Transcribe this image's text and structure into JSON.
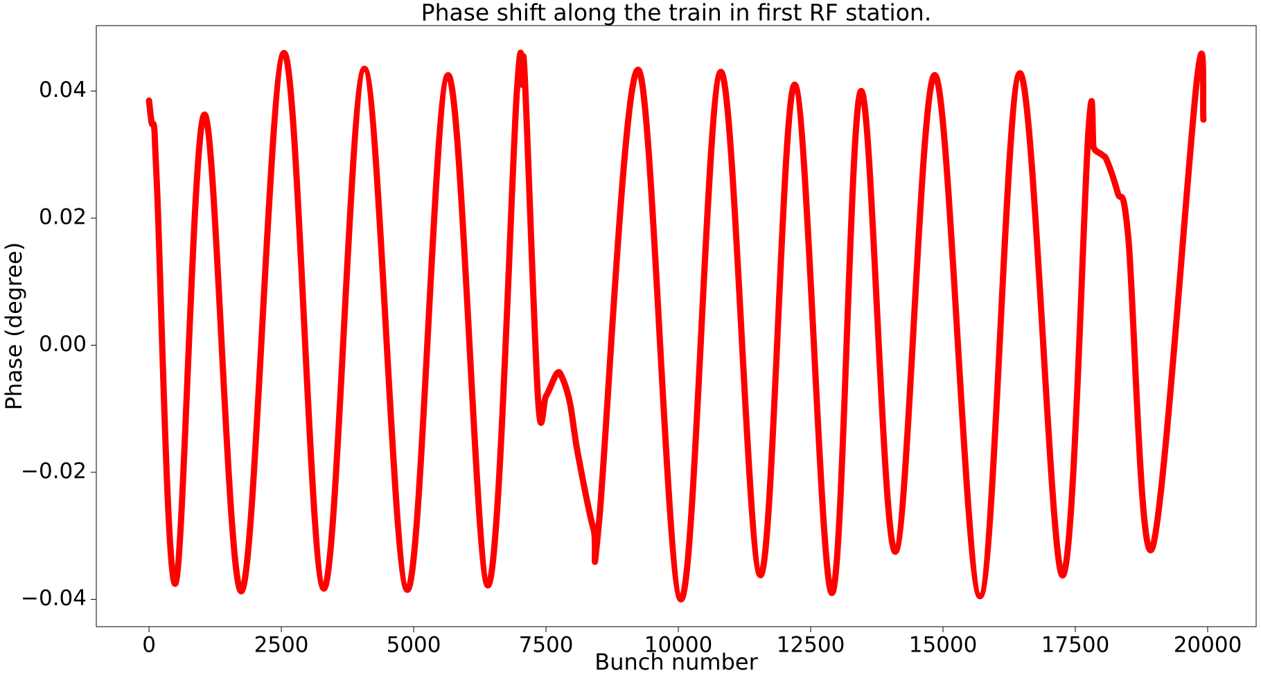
{
  "chart_data": {
    "type": "line",
    "title": "Phase shift along the train in first RF station.",
    "x_label": "Bunch number",
    "y_label": "Phase (degree)",
    "x": [
      0,
      50,
      100,
      150,
      500,
      1050,
      1750,
      2550,
      3300,
      4070,
      4880,
      5650,
      6400,
      6950,
      7050,
      7100,
      7350,
      7500,
      7700,
      7800,
      7950,
      8100,
      8400,
      8500,
      9250,
      10050,
      10800,
      11550,
      12200,
      12900,
      13450,
      14100,
      14850,
      15700,
      16450,
      17250,
      17750,
      17850,
      18000,
      18100,
      18300,
      18500,
      18950,
      19800,
      19920
    ],
    "series": [
      {
        "name": "Phase",
        "color": "#ff0000",
        "values": [
          0.0385,
          0.035,
          0.034,
          0.025,
          -0.0375,
          0.0363,
          -0.0387,
          0.046,
          -0.0383,
          0.0435,
          -0.0385,
          0.0425,
          -0.0378,
          0.04,
          0.041,
          0.042,
          -0.0085,
          -0.008,
          -0.0045,
          -0.005,
          -0.009,
          -0.017,
          -0.029,
          -0.028,
          0.0433,
          -0.04,
          0.043,
          -0.0362,
          0.041,
          -0.039,
          0.04,
          -0.0325,
          0.0425,
          -0.0395,
          0.0428,
          -0.0362,
          0.034,
          0.031,
          0.03,
          0.029,
          0.024,
          0.017,
          -0.032,
          0.042,
          0.0355
        ]
      }
    ],
    "xlim": [
      -996,
      20916
    ],
    "ylim": [
      -0.0443,
      0.0503
    ],
    "xticks": [
      0,
      2500,
      5000,
      7500,
      10000,
      12500,
      15000,
      17500,
      20000
    ],
    "yticks": [
      {
        "value": -0.04,
        "label": "−0.04"
      },
      {
        "value": -0.02,
        "label": "−0.02"
      },
      {
        "value": 0,
        "label": "0.00"
      },
      0.02,
      0.04
    ],
    "grid": false
  }
}
